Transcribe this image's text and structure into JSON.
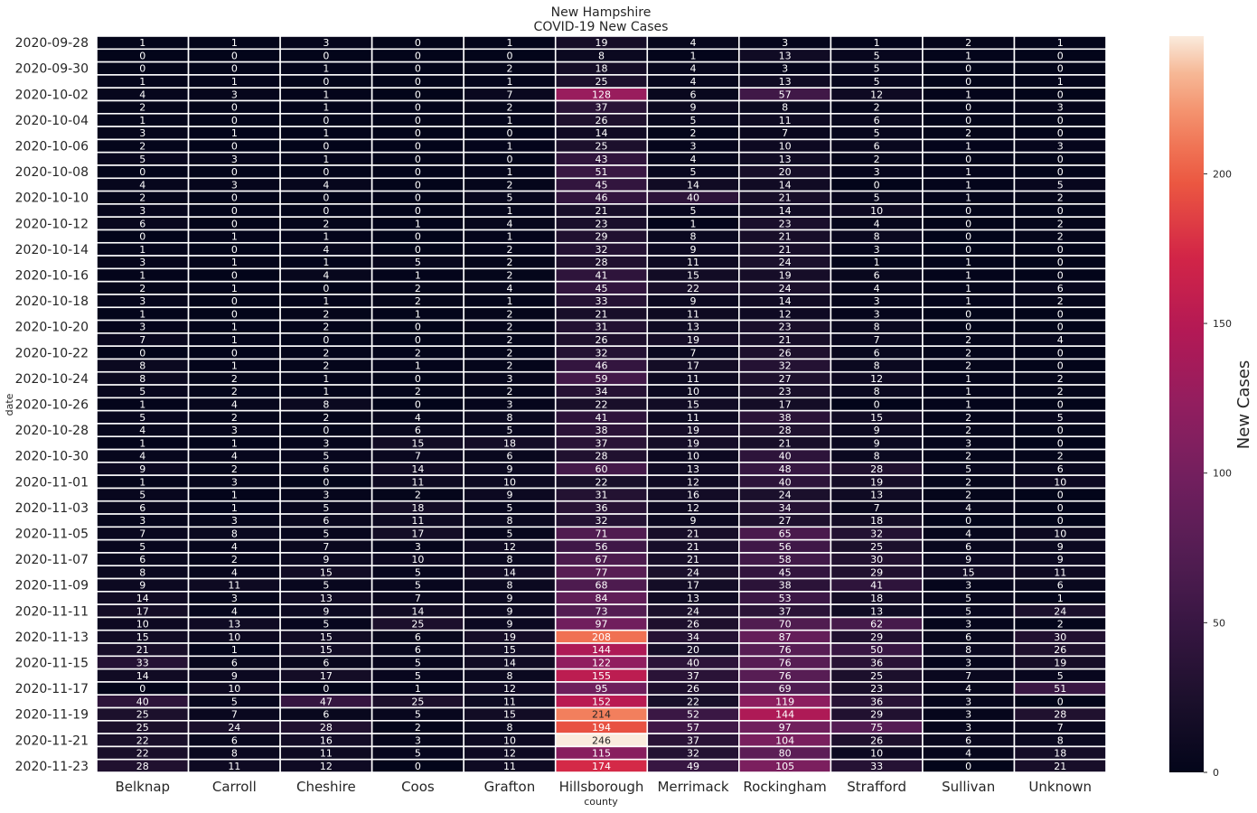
{
  "chart_data": {
    "type": "heatmap",
    "title": "New Hampshire",
    "subtitle": "COVID-19 New Cases",
    "xlabel": "county",
    "ylabel": "date",
    "colorbar_label": "New Cases",
    "colorbar_ticks": [
      0,
      50,
      100,
      150,
      200
    ],
    "vmin": 0,
    "vmax": 246,
    "colormap": "rocket",
    "columns": [
      "Belknap",
      "Carroll",
      "Cheshire",
      "Coos",
      "Grafton",
      "Hillsborough",
      "Merrimack",
      "Rockingham",
      "Strafford",
      "Sullivan",
      "Unknown"
    ],
    "y_tick_labels": [
      "2020-09-28",
      "2020-09-30",
      "2020-10-02",
      "2020-10-04",
      "2020-10-06",
      "2020-10-08",
      "2020-10-10",
      "2020-10-12",
      "2020-10-14",
      "2020-10-16",
      "2020-10-18",
      "2020-10-20",
      "2020-10-22",
      "2020-10-24",
      "2020-10-26",
      "2020-10-28",
      "2020-10-30",
      "2020-11-01",
      "2020-11-03",
      "2020-11-05",
      "2020-11-07",
      "2020-11-09",
      "2020-11-11",
      "2020-11-13",
      "2020-11-15",
      "2020-11-17",
      "2020-11-19",
      "2020-11-21",
      "2020-11-23"
    ],
    "rows": [
      [
        1,
        1,
        3,
        0,
        1,
        19,
        4,
        3,
        1,
        2,
        1
      ],
      [
        0,
        0,
        0,
        0,
        0,
        8,
        1,
        13,
        5,
        1,
        0
      ],
      [
        0,
        0,
        1,
        0,
        2,
        18,
        4,
        3,
        5,
        0,
        0
      ],
      [
        1,
        1,
        0,
        0,
        1,
        25,
        4,
        13,
        5,
        0,
        1
      ],
      [
        4,
        3,
        1,
        0,
        7,
        128,
        6,
        57,
        12,
        1,
        0
      ],
      [
        2,
        0,
        1,
        0,
        2,
        37,
        9,
        8,
        2,
        0,
        3
      ],
      [
        1,
        0,
        0,
        0,
        1,
        26,
        5,
        11,
        6,
        0,
        0
      ],
      [
        3,
        1,
        1,
        0,
        0,
        14,
        2,
        7,
        5,
        2,
        0
      ],
      [
        2,
        0,
        0,
        0,
        1,
        25,
        3,
        10,
        6,
        1,
        3
      ],
      [
        5,
        3,
        1,
        0,
        0,
        43,
        4,
        13,
        2,
        0,
        0
      ],
      [
        0,
        0,
        0,
        0,
        1,
        51,
        5,
        20,
        3,
        1,
        0
      ],
      [
        4,
        3,
        4,
        0,
        2,
        45,
        14,
        14,
        0,
        1,
        5
      ],
      [
        2,
        0,
        0,
        0,
        5,
        46,
        40,
        21,
        5,
        1,
        2
      ],
      [
        3,
        0,
        0,
        0,
        1,
        21,
        5,
        14,
        10,
        0,
        0
      ],
      [
        6,
        0,
        2,
        1,
        4,
        23,
        1,
        23,
        4,
        0,
        2
      ],
      [
        0,
        1,
        1,
        0,
        1,
        29,
        8,
        21,
        8,
        0,
        2
      ],
      [
        1,
        0,
        4,
        0,
        2,
        32,
        9,
        21,
        3,
        0,
        0
      ],
      [
        3,
        1,
        1,
        5,
        2,
        28,
        11,
        24,
        1,
        1,
        0
      ],
      [
        1,
        0,
        4,
        1,
        2,
        41,
        15,
        19,
        6,
        1,
        0
      ],
      [
        2,
        1,
        0,
        2,
        4,
        45,
        22,
        24,
        4,
        1,
        6
      ],
      [
        3,
        0,
        1,
        2,
        1,
        33,
        9,
        14,
        3,
        1,
        2
      ],
      [
        1,
        0,
        2,
        1,
        2,
        21,
        11,
        12,
        3,
        0,
        0
      ],
      [
        3,
        1,
        2,
        0,
        2,
        31,
        13,
        23,
        8,
        0,
        0
      ],
      [
        7,
        1,
        0,
        0,
        2,
        26,
        19,
        21,
        7,
        2,
        4
      ],
      [
        0,
        0,
        2,
        2,
        2,
        32,
        7,
        26,
        6,
        2,
        0
      ],
      [
        8,
        1,
        2,
        1,
        2,
        46,
        17,
        32,
        8,
        2,
        0
      ],
      [
        8,
        2,
        1,
        0,
        3,
        59,
        11,
        27,
        12,
        1,
        2
      ],
      [
        5,
        2,
        1,
        2,
        2,
        34,
        10,
        23,
        8,
        1,
        2
      ],
      [
        1,
        4,
        8,
        0,
        3,
        22,
        15,
        17,
        0,
        1,
        0
      ],
      [
        5,
        2,
        2,
        4,
        8,
        41,
        11,
        38,
        15,
        2,
        5
      ],
      [
        4,
        3,
        0,
        6,
        5,
        38,
        19,
        28,
        9,
        2,
        0
      ],
      [
        1,
        1,
        3,
        15,
        18,
        37,
        19,
        21,
        9,
        3,
        0
      ],
      [
        4,
        4,
        5,
        7,
        6,
        28,
        10,
        40,
        8,
        2,
        2
      ],
      [
        9,
        2,
        6,
        14,
        9,
        60,
        13,
        48,
        28,
        5,
        6
      ],
      [
        1,
        3,
        0,
        11,
        10,
        22,
        12,
        40,
        19,
        2,
        10
      ],
      [
        5,
        1,
        3,
        2,
        9,
        31,
        16,
        24,
        13,
        2,
        0
      ],
      [
        6,
        1,
        5,
        18,
        5,
        36,
        12,
        34,
        7,
        4,
        0
      ],
      [
        3,
        3,
        6,
        11,
        8,
        32,
        9,
        27,
        18,
        0,
        0
      ],
      [
        7,
        8,
        5,
        17,
        5,
        71,
        21,
        65,
        32,
        4,
        10
      ],
      [
        5,
        4,
        7,
        3,
        12,
        56,
        21,
        56,
        25,
        6,
        9
      ],
      [
        6,
        2,
        9,
        10,
        8,
        67,
        21,
        58,
        30,
        9,
        9
      ],
      [
        8,
        4,
        15,
        5,
        14,
        77,
        24,
        45,
        29,
        15,
        11
      ],
      [
        9,
        11,
        5,
        5,
        8,
        68,
        17,
        38,
        41,
        3,
        6
      ],
      [
        14,
        3,
        13,
        7,
        9,
        84,
        13,
        53,
        18,
        5,
        1
      ],
      [
        17,
        4,
        9,
        14,
        9,
        73,
        24,
        37,
        13,
        5,
        24
      ],
      [
        10,
        13,
        5,
        25,
        9,
        97,
        26,
        70,
        62,
        3,
        2
      ],
      [
        15,
        10,
        15,
        6,
        19,
        208,
        34,
        87,
        29,
        6,
        30
      ],
      [
        21,
        1,
        15,
        6,
        15,
        144,
        20,
        76,
        50,
        8,
        26
      ],
      [
        33,
        6,
        6,
        5,
        14,
        122,
        40,
        76,
        36,
        3,
        19
      ],
      [
        14,
        9,
        17,
        5,
        8,
        155,
        37,
        76,
        25,
        7,
        5
      ],
      [
        0,
        10,
        0,
        1,
        12,
        95,
        26,
        69,
        23,
        4,
        51
      ],
      [
        40,
        5,
        47,
        25,
        11,
        152,
        22,
        119,
        36,
        3,
        0
      ],
      [
        25,
        7,
        6,
        5,
        15,
        214,
        52,
        144,
        29,
        3,
        28
      ],
      [
        25,
        24,
        28,
        2,
        8,
        194,
        57,
        97,
        75,
        3,
        7
      ],
      [
        22,
        6,
        16,
        3,
        10,
        246,
        37,
        104,
        26,
        6,
        8
      ],
      [
        22,
        8,
        11,
        5,
        12,
        115,
        32,
        80,
        10,
        4,
        18
      ],
      [
        28,
        11,
        12,
        0,
        11,
        174,
        49,
        105,
        33,
        0,
        21
      ]
    ]
  }
}
